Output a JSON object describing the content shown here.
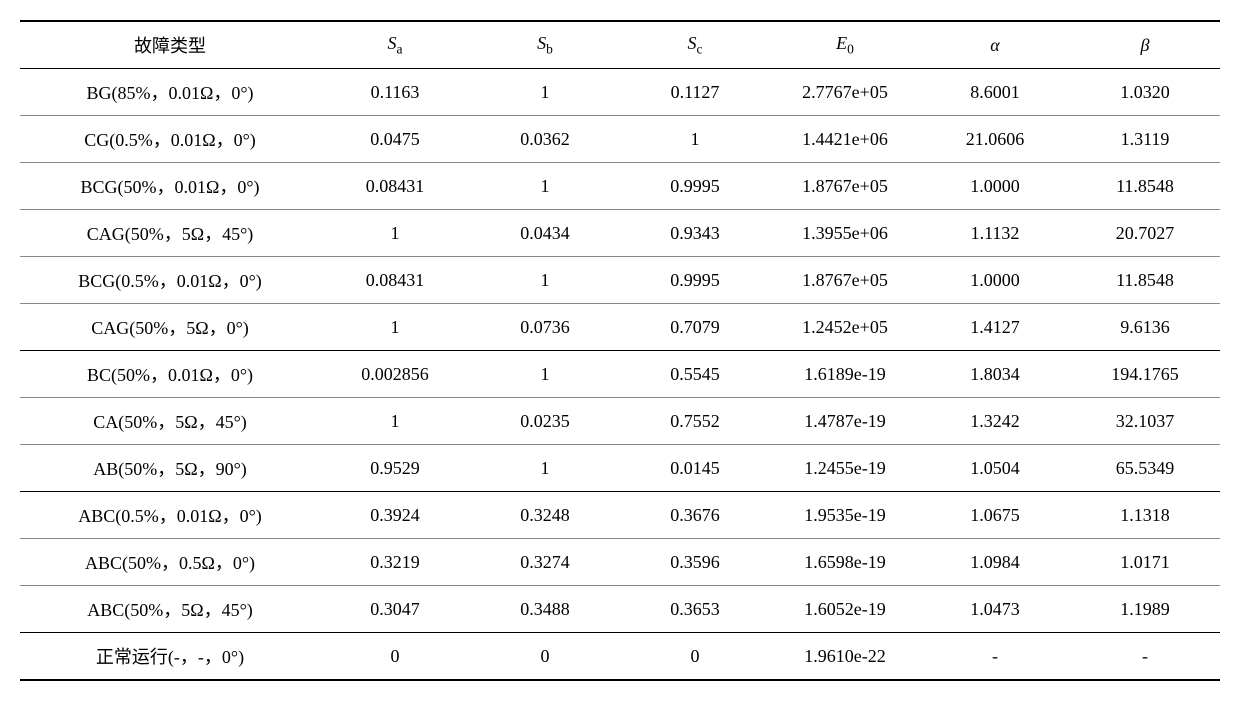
{
  "table": {
    "background_color": "#ffffff",
    "border_color_heavy": "#000000",
    "border_color_light": "#888888",
    "font_size": 18,
    "font_family": "Times New Roman, SimSun, serif",
    "columns": [
      {
        "key": "fault_type",
        "label": "故障类型",
        "italic": false
      },
      {
        "key": "sa",
        "label_main": "S",
        "label_sub": "a",
        "italic": true
      },
      {
        "key": "sb",
        "label_main": "S",
        "label_sub": "b",
        "italic": true
      },
      {
        "key": "sc",
        "label_main": "S",
        "label_sub": "c",
        "italic": true
      },
      {
        "key": "e0",
        "label_main": "E",
        "label_sub": "0",
        "italic": true
      },
      {
        "key": "alpha",
        "label": "α",
        "italic": true
      },
      {
        "key": "beta",
        "label": "β",
        "italic": true
      }
    ],
    "rows": [
      {
        "fault_type": "BG(85%，0.01Ω，0°)",
        "sa": "0.1163",
        "sb": "1",
        "sc": "0.1127",
        "e0": "2.7767e+05",
        "alpha": "8.6001",
        "beta": "1.0320",
        "section_end": false
      },
      {
        "fault_type": "CG(0.5%，0.01Ω，0°)",
        "sa": "0.0475",
        "sb": "0.0362",
        "sc": "1",
        "e0": "1.4421e+06",
        "alpha": "21.0606",
        "beta": "1.3119",
        "section_end": false
      },
      {
        "fault_type": "BCG(50%，0.01Ω，0°)",
        "sa": "0.08431",
        "sb": "1",
        "sc": "0.9995",
        "e0": "1.8767e+05",
        "alpha": "1.0000",
        "beta": "11.8548",
        "section_end": false
      },
      {
        "fault_type": "CAG(50%，5Ω，45°)",
        "sa": "1",
        "sb": "0.0434",
        "sc": "0.9343",
        "e0": "1.3955e+06",
        "alpha": "1.1132",
        "beta": "20.7027",
        "section_end": false
      },
      {
        "fault_type": "BCG(0.5%，0.01Ω，0°)",
        "sa": "0.08431",
        "sb": "1",
        "sc": "0.9995",
        "e0": "1.8767e+05",
        "alpha": "1.0000",
        "beta": "11.8548",
        "section_end": false
      },
      {
        "fault_type": "CAG(50%，5Ω，0°)",
        "sa": "1",
        "sb": "0.0736",
        "sc": "0.7079",
        "e0": "1.2452e+05",
        "alpha": "1.4127",
        "beta": "9.6136",
        "section_end": true
      },
      {
        "fault_type": "BC(50%，0.01Ω，0°)",
        "sa": "0.002856",
        "sb": "1",
        "sc": "0.5545",
        "e0": "1.6189e-19",
        "alpha": "1.8034",
        "beta": "194.1765",
        "section_end": false
      },
      {
        "fault_type": "CA(50%，5Ω，45°)",
        "sa": "1",
        "sb": "0.0235",
        "sc": "0.7552",
        "e0": "1.4787e-19",
        "alpha": "1.3242",
        "beta": "32.1037",
        "section_end": false
      },
      {
        "fault_type": "AB(50%，5Ω，90°)",
        "sa": "0.9529",
        "sb": "1",
        "sc": "0.0145",
        "e0": "1.2455e-19",
        "alpha": "1.0504",
        "beta": "65.5349",
        "section_end": true
      },
      {
        "fault_type": "ABC(0.5%，0.01Ω，0°)",
        "sa": "0.3924",
        "sb": "0.3248",
        "sc": "0.3676",
        "e0": "1.9535e-19",
        "alpha": "1.0675",
        "beta": "1.1318",
        "section_end": false
      },
      {
        "fault_type": "ABC(50%，0.5Ω，0°)",
        "sa": "0.3219",
        "sb": "0.3274",
        "sc": "0.3596",
        "e0": "1.6598e-19",
        "alpha": "1.0984",
        "beta": "1.0171",
        "section_end": false
      },
      {
        "fault_type": "ABC(50%，5Ω，45°)",
        "sa": "0.3047",
        "sb": "0.3488",
        "sc": "0.3653",
        "e0": "1.6052e-19",
        "alpha": "1.0473",
        "beta": "1.1989",
        "section_end": true
      },
      {
        "fault_type": "正常运行(-，-，0°)",
        "sa": "0",
        "sb": "0",
        "sc": "0",
        "e0": "1.9610e-22",
        "alpha": "-",
        "beta": "-",
        "section_end": false
      }
    ]
  }
}
